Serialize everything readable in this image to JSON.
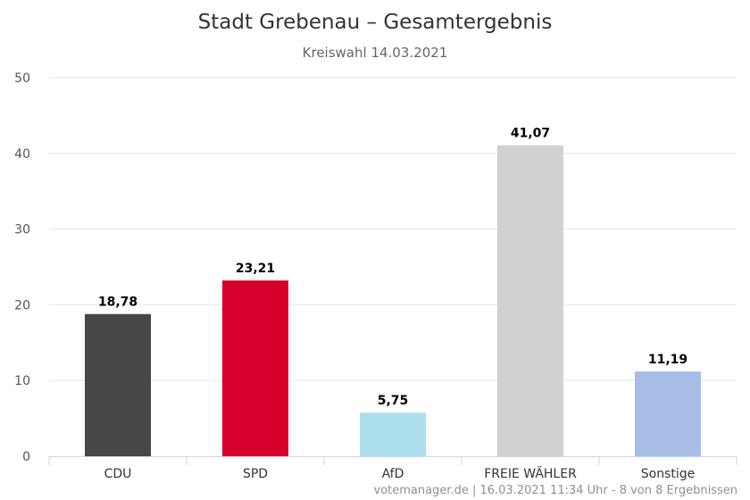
{
  "title": "Stadt Grebenau – Gesamtergebnis",
  "subtitle": "Kreiswahl 14.03.2021",
  "credits": "votemanager.de | 16.03.2021 11:34 Uhr - 8 von 8 Ergebnissen",
  "chart_data": {
    "type": "bar",
    "title": "Stadt Grebenau – Gesamtergebnis",
    "subtitle": "Kreiswahl 14.03.2021",
    "categories": [
      "CDU",
      "SPD",
      "AfD",
      "FREIE WÄHLER",
      "Sonstige"
    ],
    "values": [
      18.78,
      23.21,
      5.75,
      41.07,
      11.19
    ],
    "value_labels": [
      "18,78",
      "23,21",
      "5,75",
      "41,07",
      "11,19"
    ],
    "colors": [
      "#474747",
      "#d4002b",
      "#acdeec",
      "#d1d1d1",
      "#a8bde6"
    ],
    "ylim": [
      0,
      50
    ],
    "yticks": [
      0,
      10,
      20,
      30,
      40,
      50
    ],
    "grid": true,
    "legend": "none"
  }
}
